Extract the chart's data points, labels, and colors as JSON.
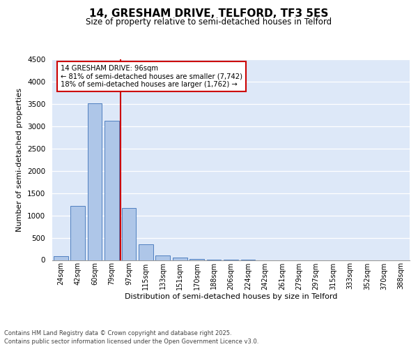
{
  "title": "14, GRESHAM DRIVE, TELFORD, TF3 5ES",
  "subtitle": "Size of property relative to semi-detached houses in Telford",
  "xlabel": "Distribution of semi-detached houses by size in Telford",
  "ylabel": "Number of semi-detached properties",
  "bin_labels": [
    "24sqm",
    "42sqm",
    "60sqm",
    "79sqm",
    "97sqm",
    "115sqm",
    "133sqm",
    "151sqm",
    "170sqm",
    "188sqm",
    "206sqm",
    "224sqm",
    "242sqm",
    "261sqm",
    "279sqm",
    "297sqm",
    "315sqm",
    "333sqm",
    "352sqm",
    "370sqm",
    "388sqm"
  ],
  "bar_values": [
    80,
    1220,
    3520,
    3120,
    1160,
    350,
    100,
    55,
    20,
    8,
    3,
    1,
    0,
    0,
    0,
    0,
    0,
    0,
    0,
    0,
    0
  ],
  "bar_color": "#aec6e8",
  "bar_edge_color": "#5080c0",
  "background_color": "#dde8f8",
  "annotation_box_color": "#cc0000",
  "ylim": [
    0,
    4500
  ],
  "yticks": [
    0,
    500,
    1000,
    1500,
    2000,
    2500,
    3000,
    3500,
    4000,
    4500
  ],
  "annotation_title": "14 GRESHAM DRIVE: 96sqm",
  "annotation_line1": "← 81% of semi-detached houses are smaller (7,742)",
  "annotation_line2": "18% of semi-detached houses are larger (1,762) →",
  "footer_line1": "Contains HM Land Registry data © Crown copyright and database right 2025.",
  "footer_line2": "Contains public sector information licensed under the Open Government Licence v3.0.",
  "property_line_x": 3.5
}
